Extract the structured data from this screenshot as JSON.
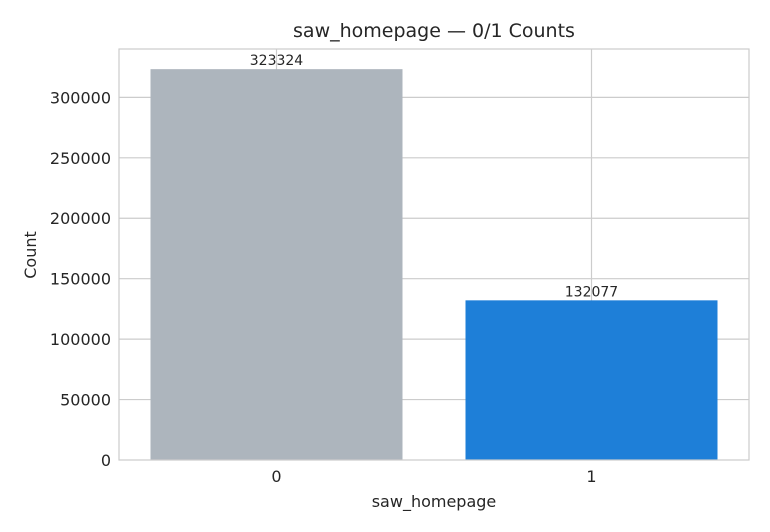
{
  "chart_data": {
    "type": "bar",
    "title": "saw_homepage — 0/1 Counts",
    "xlabel": "saw_homepage",
    "ylabel": "Count",
    "categories": [
      "0",
      "1"
    ],
    "values": [
      323324,
      132077
    ],
    "data_labels": [
      "323324",
      "132077"
    ],
    "colors": [
      "#adb5bd",
      "#1e7fd8"
    ],
    "ylim": [
      0,
      340000
    ],
    "yticks": [
      0,
      50000,
      100000,
      150000,
      200000,
      250000,
      300000
    ],
    "ytick_labels": [
      "0",
      "50000",
      "100000",
      "150000",
      "200000",
      "250000",
      "300000"
    ],
    "grid": true,
    "legend": "none"
  }
}
